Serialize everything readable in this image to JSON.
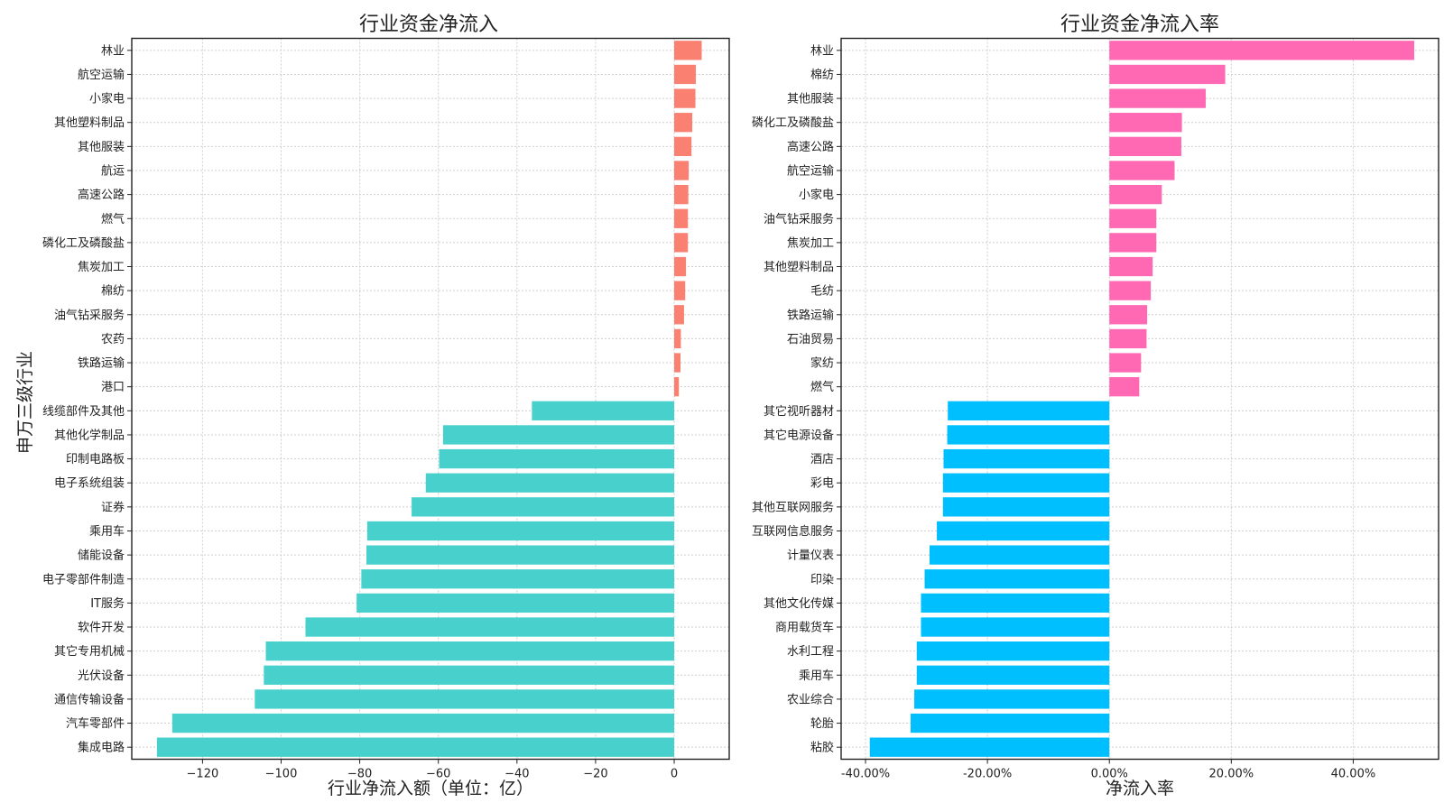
{
  "chart_data": [
    {
      "type": "bar",
      "orientation": "horizontal",
      "title": "行业资金净流入",
      "xlabel": "行业净流入额（单位：亿）",
      "ylabel": "申万三级行业",
      "xlim": [
        -138,
        14
      ],
      "xticks": [
        -120,
        -100,
        -80,
        -60,
        -40,
        -20,
        0
      ],
      "xtick_labels": [
        "−120",
        "−100",
        "−80",
        "−60",
        "−40",
        "−20",
        "0"
      ],
      "grid": true,
      "colors": {
        "positive": "#fa8072",
        "negative": "#48d1cc"
      },
      "categories": [
        "林业",
        "航空运输",
        "小家电",
        "其他塑料制品",
        "其他服装",
        "航运",
        "高速公路",
        "燃气",
        "磷化工及磷酸盐",
        "焦炭加工",
        "棉纺",
        "油气钻采服务",
        "农药",
        "铁路运输",
        "港口",
        "线缆部件及其他",
        "其他化学制品",
        "印制电路板",
        "电子系统组装",
        "证券",
        "乘用车",
        "储能设备",
        "电子零部件制造",
        "IT服务",
        "软件开发",
        "其它专用机械",
        "光伏设备",
        "通信传输设备",
        "汽车零部件",
        "集成电路"
      ],
      "values": [
        7.0,
        5.5,
        5.4,
        4.6,
        4.4,
        3.7,
        3.6,
        3.5,
        3.5,
        3.0,
        2.8,
        2.5,
        1.7,
        1.6,
        1.2,
        -36.2,
        -58.8,
        -59.8,
        -63.2,
        -66.8,
        -78.1,
        -78.3,
        -79.6,
        -80.8,
        -93.8,
        -103.9,
        -104.4,
        -106.7,
        -127.7,
        -131.6
      ]
    },
    {
      "type": "bar",
      "orientation": "horizontal",
      "title": "行业资金净流入率",
      "xlabel": "净流入率",
      "ylabel": "",
      "xlim": [
        -44,
        54
      ],
      "xticks": [
        -40,
        -20,
        0,
        20,
        40
      ],
      "xtick_labels": [
        "-40.00%",
        "-20.00%",
        "0.00%",
        "20.00%",
        "40.00%"
      ],
      "grid": true,
      "colors": {
        "positive": "#ff69b4",
        "negative": "#00bfff"
      },
      "categories": [
        "林业",
        "棉纺",
        "其他服装",
        "磷化工及磷酸盐",
        "高速公路",
        "航空运输",
        "小家电",
        "油气钻采服务",
        "焦炭加工",
        "其他塑料制品",
        "毛纺",
        "铁路运输",
        "石油贸易",
        "家纺",
        "燃气",
        "其它视听器材",
        "其它电源设备",
        "酒店",
        "彩电",
        "其他互联网服务",
        "互联网信息服务",
        "计量仪表",
        "印染",
        "其他文化传媒",
        "商用载货车",
        "水利工程",
        "乘用车",
        "农业综合",
        "轮胎",
        "粘胶"
      ],
      "values": [
        50.0,
        19.0,
        15.8,
        11.9,
        11.8,
        10.7,
        8.6,
        7.7,
        7.7,
        7.1,
        6.8,
        6.2,
        6.1,
        5.2,
        4.9,
        -26.5,
        -26.6,
        -27.2,
        -27.3,
        -27.3,
        -28.3,
        -29.5,
        -30.3,
        -30.9,
        -30.9,
        -31.6,
        -31.6,
        -32.0,
        -32.6,
        -39.3
      ]
    }
  ]
}
